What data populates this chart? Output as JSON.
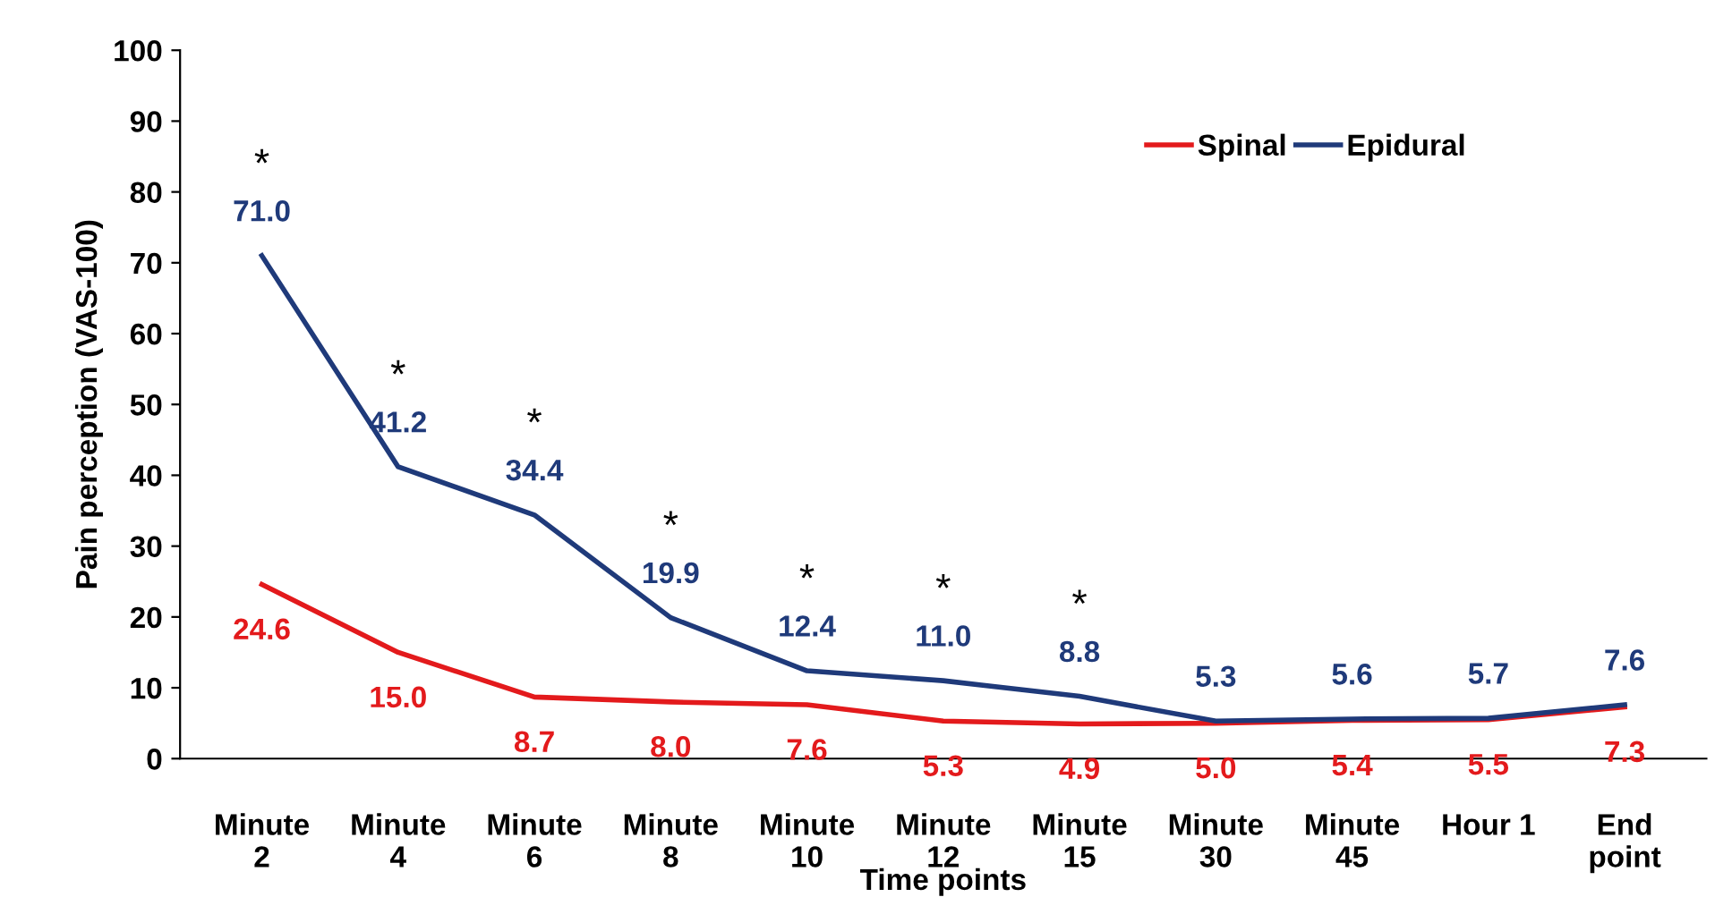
{
  "chart_data": {
    "type": "line",
    "xlabel": "Time points",
    "ylabel": "Pain perception (VAS-100)",
    "categories": [
      "Minute\n2",
      "Minute\n4",
      "Minute\n6",
      "Minute\n8",
      "Minute\n10",
      "Minute\n12",
      "Minute\n15",
      "Minute\n30",
      "Minute\n45",
      "Hour 1",
      "End\npoint"
    ],
    "series": [
      {
        "name": "Spinal",
        "color": "#e31a1c",
        "values": [
          24.6,
          15.0,
          8.7,
          8.0,
          7.6,
          5.3,
          4.9,
          5.0,
          5.4,
          5.5,
          7.3
        ],
        "value_labels": [
          "24.6",
          "15.0",
          "8.7",
          "8.0",
          "7.6",
          "5.3",
          "4.9",
          "5.0",
          "5.4",
          "5.5",
          "7.3"
        ]
      },
      {
        "name": "Epidural",
        "color": "#1f3a7a",
        "values": [
          71.0,
          41.2,
          34.4,
          19.9,
          12.4,
          11.0,
          8.8,
          5.3,
          5.6,
          5.7,
          7.6
        ],
        "value_labels": [
          "71.0",
          "41.2",
          "34.4",
          "19.9",
          "12.4",
          "11.0",
          "8.8",
          "5.3",
          "5.6",
          "5.7",
          "7.6"
        ]
      }
    ],
    "ylim": [
      0,
      100
    ],
    "yticks": [
      0,
      10,
      20,
      30,
      40,
      50,
      60,
      70,
      80,
      90,
      100
    ],
    "grid": false,
    "legend": "top right",
    "marker": "none",
    "line_style": "solid",
    "annotations": [
      "*",
      "*",
      "*",
      "*",
      "*",
      "*",
      "*"
    ]
  }
}
